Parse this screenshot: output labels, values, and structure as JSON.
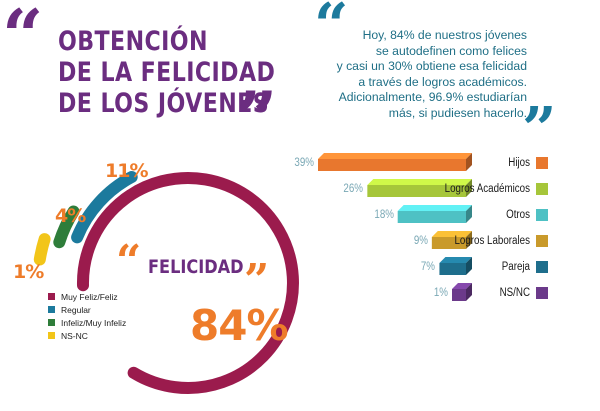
{
  "header": {
    "title_lines": [
      "OBTENCIÓN",
      "DE LA FELICIDAD",
      "DE LOS JÓVENES"
    ]
  },
  "quote": {
    "lines": [
      "Hoy, 84% de nuestros jóvenes",
      "se autodefinen como felices",
      "y casi un 30% obtiene esa felicidad",
      "a través de logros académicos.",
      "Adicionalmente, 96.9% estudiarían",
      "más, si pudiesen hacerlo."
    ]
  },
  "colors": {
    "purple": "#6b2d80",
    "maroon": "#9b1b4d",
    "blue": "#1c7a9d",
    "orange": "#ee7c2a",
    "green": "#2e7d3a",
    "yellow": "#f2c519"
  },
  "felicidad": {
    "label": "FELICIDAD",
    "value": "84%"
  },
  "legend": [
    {
      "label": "Muy Feliz/Feliz",
      "color": "#9b1b4d"
    },
    {
      "label": "Regular",
      "color": "#1c7a9d"
    },
    {
      "label": "Infeliz/Muy Infeliz",
      "color": "#2e7d3a"
    },
    {
      "label": "NS-NC",
      "color": "#f2c519"
    }
  ],
  "chart_data": [
    {
      "type": "pie",
      "title": "FELICIDAD",
      "categories": [
        "Muy Feliz/Feliz",
        "Regular",
        "Infeliz/Muy Infeliz",
        "NS-NC"
      ],
      "values": [
        84,
        11,
        4,
        1
      ],
      "labels": [
        "84%",
        "11%",
        "4%",
        "1%"
      ],
      "colors": [
        "#9b1b4d",
        "#1c7a9d",
        "#2e7d3a",
        "#f2c519"
      ],
      "pct_colors": [
        "#ee7c2a",
        "#ee7c2a",
        "#ee7c2a",
        "#ee7c2a"
      ]
    },
    {
      "type": "bar",
      "categories": [
        "Hijos",
        "Logros Académicos",
        "Otros",
        "Logros Laborales",
        "Pareja",
        "NS/NC"
      ],
      "values": [
        39,
        26,
        18,
        9,
        7,
        1
      ],
      "labels": [
        "39%",
        "26%",
        "18%",
        "9%",
        "7%",
        "1%"
      ],
      "colors": [
        "#e8772e",
        "#a6c63a",
        "#4ec1c4",
        "#c99a2b",
        "#1e6e8c",
        "#6b3a8a"
      ]
    }
  ]
}
